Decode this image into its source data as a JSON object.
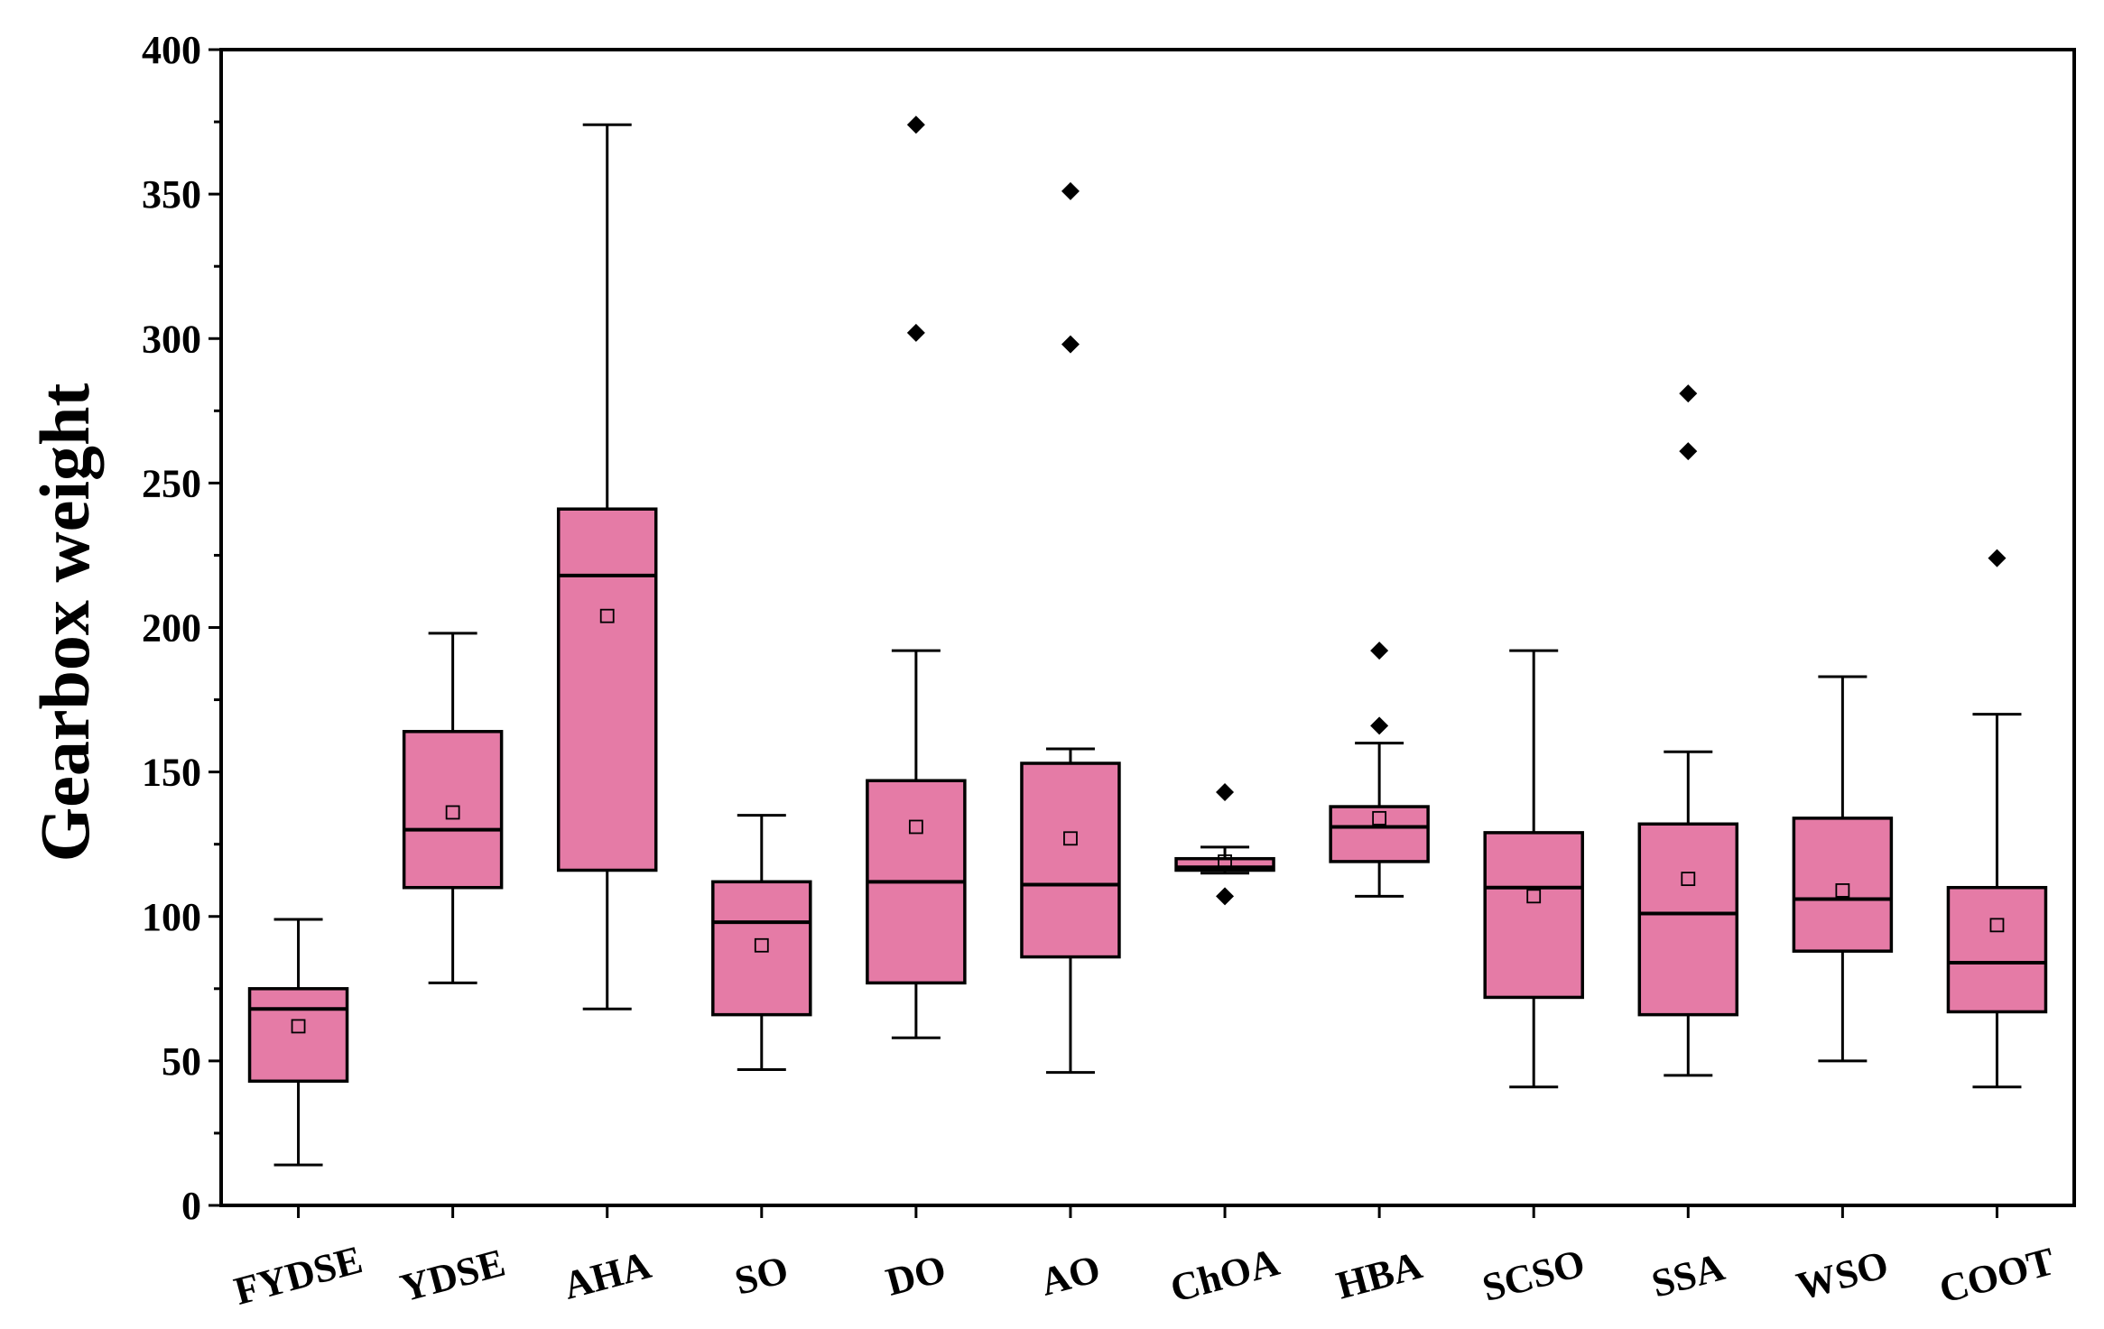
{
  "chart_data": {
    "type": "box",
    "title": "",
    "xlabel": "",
    "ylabel": "Gearbox weight",
    "ylim": [
      0,
      400
    ],
    "yticks": [
      0,
      50,
      100,
      150,
      200,
      250,
      300,
      350,
      400
    ],
    "box_color": "#e57ba6",
    "categories": [
      "FYDSE",
      "YDSE",
      "AHA",
      "SO",
      "DO",
      "AO",
      "ChOA",
      "HBA",
      "SCSO",
      "SSA",
      "WSO",
      "COOT"
    ],
    "boxes": [
      {
        "name": "FYDSE",
        "whisker_low": 14,
        "q1": 43,
        "median": 68,
        "q3": 75,
        "whisker_high": 99,
        "mean": 62,
        "outliers": []
      },
      {
        "name": "YDSE",
        "whisker_low": 77,
        "q1": 110,
        "median": 130,
        "q3": 164,
        "whisker_high": 198,
        "mean": 136,
        "outliers": []
      },
      {
        "name": "AHA",
        "whisker_low": 68,
        "q1": 116,
        "median": 218,
        "q3": 241,
        "whisker_high": 374,
        "mean": 204,
        "outliers": []
      },
      {
        "name": "SO",
        "whisker_low": 47,
        "q1": 66,
        "median": 98,
        "q3": 112,
        "whisker_high": 135,
        "mean": 90,
        "outliers": []
      },
      {
        "name": "DO",
        "whisker_low": 58,
        "q1": 77,
        "median": 112,
        "q3": 147,
        "whisker_high": 192,
        "mean": 131,
        "outliers": [
          302,
          374
        ]
      },
      {
        "name": "AO",
        "whisker_low": 46,
        "q1": 86,
        "median": 111,
        "q3": 153,
        "whisker_high": 158,
        "mean": 127,
        "outliers": [
          298,
          351
        ]
      },
      {
        "name": "ChOA",
        "whisker_low": 115,
        "q1": 116,
        "median": 117,
        "q3": 120,
        "whisker_high": 124,
        "mean": 119,
        "outliers": [
          107,
          143
        ]
      },
      {
        "name": "HBA",
        "whisker_low": 107,
        "q1": 119,
        "median": 131,
        "q3": 138,
        "whisker_high": 160,
        "mean": 134,
        "outliers": [
          166,
          192
        ]
      },
      {
        "name": "SCSO",
        "whisker_low": 41,
        "q1": 72,
        "median": 110,
        "q3": 129,
        "whisker_high": 192,
        "mean": 107,
        "outliers": []
      },
      {
        "name": "SSA",
        "whisker_low": 45,
        "q1": 66,
        "median": 101,
        "q3": 132,
        "whisker_high": 157,
        "mean": 113,
        "outliers": [
          261,
          281
        ]
      },
      {
        "name": "WSO",
        "whisker_low": 50,
        "q1": 88,
        "median": 106,
        "q3": 134,
        "whisker_high": 183,
        "mean": 109,
        "outliers": []
      },
      {
        "name": "COOT",
        "whisker_low": 41,
        "q1": 67,
        "median": 84,
        "q3": 110,
        "whisker_high": 170,
        "mean": 97,
        "outliers": [
          224
        ]
      }
    ]
  }
}
